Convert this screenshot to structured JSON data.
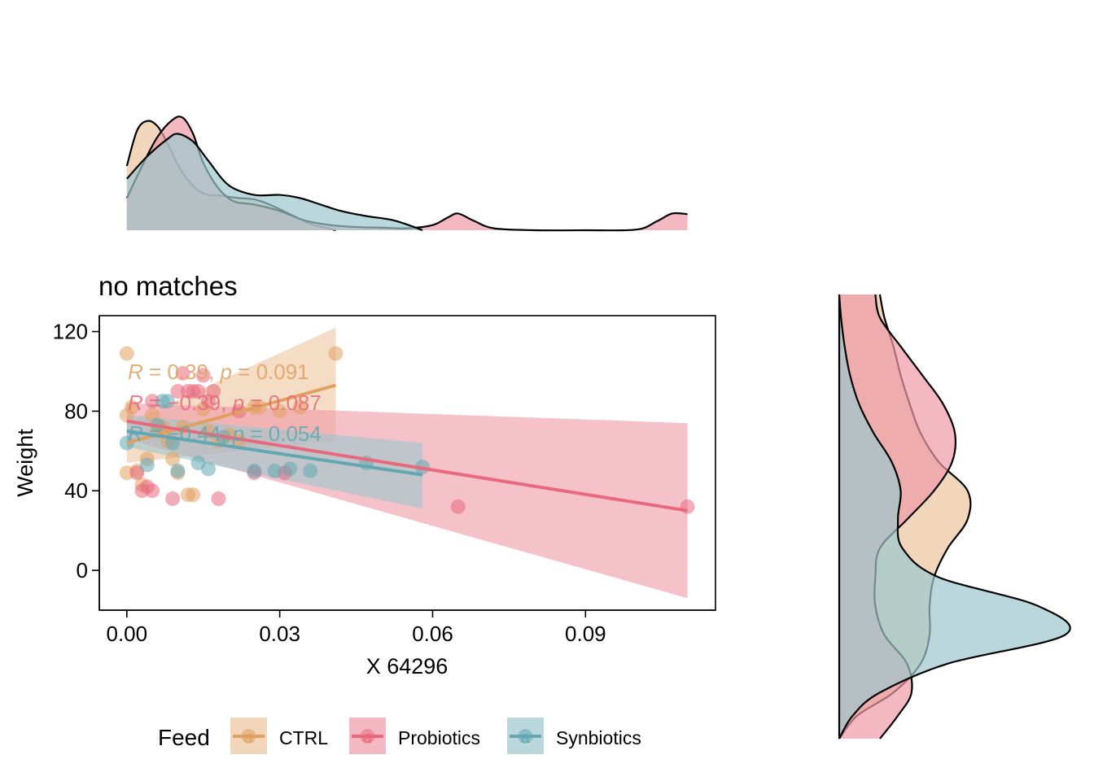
{
  "chart_data": {
    "type": "scatter",
    "title": "no matches",
    "xlabel": "X 64296",
    "ylabel": "Weight",
    "xlim": [
      -0.0054,
      0.1155
    ],
    "ylim": [
      -20,
      128
    ],
    "xticks": [
      0.0,
      0.03,
      0.06,
      0.09
    ],
    "xtick_labels": [
      "0.00",
      "0.03",
      "0.06",
      "0.09"
    ],
    "yticks": [
      0,
      40,
      80,
      120
    ],
    "ytick_labels": [
      "0",
      "40",
      "80",
      "120"
    ],
    "grid": false,
    "legend": {
      "title": "Feed",
      "position": "bottom",
      "glyph_letter": "a",
      "entries": [
        "CTRL",
        "Probiotics",
        "Synbiotics"
      ]
    },
    "colors": {
      "CTRL": "#E1A060",
      "Probiotics": "#E8697D",
      "Synbiotics": "#62A7B2",
      "outline": "#000000"
    },
    "series": [
      {
        "name": "CTRL",
        "points": [
          [
            0.0,
            109
          ],
          [
            0.0,
            78
          ],
          [
            0.0,
            49
          ],
          [
            0.001,
            82
          ],
          [
            0.002,
            50
          ],
          [
            0.003,
            43
          ],
          [
            0.004,
            56
          ],
          [
            0.005,
            78
          ],
          [
            0.006,
            70
          ],
          [
            0.007,
            72
          ],
          [
            0.008,
            65
          ],
          [
            0.009,
            56
          ],
          [
            0.01,
            49
          ],
          [
            0.011,
            72
          ],
          [
            0.012,
            38
          ],
          [
            0.013,
            38
          ],
          [
            0.015,
            81
          ],
          [
            0.016,
            70
          ],
          [
            0.018,
            65
          ],
          [
            0.02,
            68
          ],
          [
            0.022,
            65
          ],
          [
            0.025,
            82
          ],
          [
            0.026,
            82
          ],
          [
            0.03,
            80
          ],
          [
            0.034,
            82
          ],
          [
            0.041,
            109
          ]
        ],
        "fit": {
          "x": [
            0.0,
            0.041
          ],
          "y": [
            64,
            93
          ],
          "ci_lower": [
            54,
            65
          ],
          "ci_upper": [
            74,
            122
          ]
        },
        "stat": {
          "r": "0.39",
          "p": "0.091"
        }
      },
      {
        "name": "Probiotics",
        "points": [
          [
            0.002,
            49
          ],
          [
            0.003,
            40
          ],
          [
            0.004,
            42
          ],
          [
            0.005,
            40
          ],
          [
            0.005,
            85
          ],
          [
            0.009,
            36
          ],
          [
            0.01,
            90
          ],
          [
            0.011,
            99
          ],
          [
            0.012,
            90
          ],
          [
            0.013,
            90
          ],
          [
            0.014,
            90
          ],
          [
            0.015,
            98
          ],
          [
            0.016,
            85
          ],
          [
            0.017,
            90
          ],
          [
            0.018,
            36
          ],
          [
            0.022,
            80
          ],
          [
            0.025,
            49
          ],
          [
            0.031,
            49
          ],
          [
            0.065,
            32
          ],
          [
            0.11,
            32
          ]
        ],
        "fit": {
          "x": [
            0.0,
            0.11
          ],
          "y": [
            75,
            30
          ],
          "ci_lower": [
            66,
            -14
          ],
          "ci_upper": [
            84,
            74
          ]
        },
        "stat": {
          "r": "−0.39",
          "p": "0.087"
        }
      },
      {
        "name": "Synbiotics",
        "points": [
          [
            0.0,
            64
          ],
          [
            0.004,
            53
          ],
          [
            0.006,
            73
          ],
          [
            0.007,
            85
          ],
          [
            0.008,
            85
          ],
          [
            0.009,
            64
          ],
          [
            0.01,
            50
          ],
          [
            0.014,
            54
          ],
          [
            0.016,
            51
          ],
          [
            0.019,
            67
          ],
          [
            0.025,
            50
          ],
          [
            0.029,
            50
          ],
          [
            0.032,
            51
          ],
          [
            0.036,
            50
          ],
          [
            0.047,
            54
          ],
          [
            0.058,
            52
          ]
        ],
        "fit": {
          "x": [
            0.0,
            0.058
          ],
          "y": [
            70,
            48
          ],
          "ci_lower": [
            62,
            31
          ],
          "ci_upper": [
            78,
            64
          ]
        },
        "stat": {
          "r": "−0.44",
          "p": "0.054"
        }
      }
    ],
    "marginal_x_density": {
      "type": "area",
      "range": [
        0.0,
        0.11
      ],
      "series": [
        {
          "name": "CTRL",
          "x": [
            0.0,
            0.002,
            0.004,
            0.006,
            0.008,
            0.01,
            0.012,
            0.014,
            0.016,
            0.018,
            0.02,
            0.022,
            0.025,
            0.028,
            0.032,
            0.036,
            0.04,
            0.041
          ],
          "y": [
            1.0,
            1.55,
            1.7,
            1.62,
            1.35,
            1.02,
            0.78,
            0.62,
            0.55,
            0.54,
            0.52,
            0.5,
            0.48,
            0.4,
            0.25,
            0.1,
            0.02,
            0.0
          ]
        },
        {
          "name": "Probiotics",
          "x": [
            0.0,
            0.003,
            0.006,
            0.009,
            0.011,
            0.013,
            0.015,
            0.018,
            0.021,
            0.025,
            0.03,
            0.035,
            0.04,
            0.045,
            0.05,
            0.055,
            0.06,
            0.063,
            0.065,
            0.068,
            0.072,
            0.08,
            0.09,
            0.1,
            0.104,
            0.107,
            0.11
          ],
          "y": [
            0.5,
            1.0,
            1.45,
            1.72,
            1.75,
            1.5,
            1.05,
            0.65,
            0.45,
            0.4,
            0.3,
            0.15,
            0.08,
            0.05,
            0.04,
            0.03,
            0.08,
            0.2,
            0.26,
            0.15,
            0.03,
            0.0,
            0.0,
            0.01,
            0.14,
            0.26,
            0.25
          ]
        },
        {
          "name": "Synbiotics",
          "x": [
            0.0,
            0.004,
            0.008,
            0.01,
            0.013,
            0.016,
            0.02,
            0.025,
            0.03,
            0.034,
            0.038,
            0.042,
            0.047,
            0.052,
            0.056,
            0.058
          ],
          "y": [
            0.8,
            1.15,
            1.42,
            1.5,
            1.38,
            1.08,
            0.7,
            0.55,
            0.55,
            0.5,
            0.4,
            0.3,
            0.22,
            0.16,
            0.06,
            0.0
          ]
        }
      ]
    },
    "marginal_y_density": {
      "type": "area",
      "range": [
        32,
        109
      ],
      "series": [
        {
          "name": "CTRL",
          "y": [
            32,
            36,
            40,
            45,
            50,
            55,
            60,
            65,
            70,
            75,
            80,
            85,
            90,
            95,
            100,
            105,
            109
          ],
          "density": [
            0.0,
            0.2,
            0.6,
            0.9,
            1.0,
            1.0,
            1.05,
            1.2,
            1.42,
            1.42,
            1.1,
            0.9,
            0.78,
            0.68,
            0.6,
            0.5,
            0.45
          ]
        },
        {
          "name": "Probiotics",
          "y": [
            32,
            36,
            40,
            45,
            50,
            55,
            60,
            65,
            70,
            75,
            80,
            85,
            90,
            95,
            100,
            105,
            109
          ],
          "density": [
            0.45,
            0.65,
            0.8,
            0.75,
            0.5,
            0.4,
            0.4,
            0.45,
            0.75,
            1.05,
            1.25,
            1.28,
            1.15,
            0.92,
            0.68,
            0.45,
            0.4
          ]
        },
        {
          "name": "Synbiotics",
          "y": [
            32,
            36,
            40,
            45,
            50,
            55,
            60,
            65,
            70,
            75,
            80,
            85,
            90,
            95,
            100,
            105,
            109
          ],
          "density": [
            0.0,
            0.15,
            0.45,
            1.2,
            2.5,
            2.2,
            1.1,
            0.7,
            0.65,
            0.68,
            0.58,
            0.38,
            0.22,
            0.12,
            0.06,
            0.02,
            0.0
          ]
        }
      ]
    }
  }
}
